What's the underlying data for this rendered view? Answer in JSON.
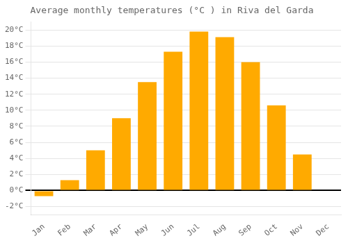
{
  "chart_data": {
    "type": "bar",
    "title": "Average monthly temperatures (°C ) in Riva del Garda",
    "categories": [
      "Jan",
      "Feb",
      "Mar",
      "Apr",
      "May",
      "Jun",
      "Jul",
      "Aug",
      "Sep",
      "Oct",
      "Nov",
      "Dec"
    ],
    "values": [
      -0.7,
      1.3,
      5.0,
      9.0,
      13.5,
      17.3,
      19.8,
      19.1,
      16.0,
      10.6,
      4.5,
      0.0
    ],
    "color": "#FFAA00",
    "ylim": [
      -3,
      21
    ],
    "yticks": [
      {
        "value": -2,
        "label": "-2°C"
      },
      {
        "value": 0,
        "label": "0°C"
      },
      {
        "value": 2,
        "label": "2°C"
      },
      {
        "value": 4,
        "label": "4°C"
      },
      {
        "value": 6,
        "label": "6°C"
      },
      {
        "value": 8,
        "label": "8°C"
      },
      {
        "value": 10,
        "label": "10°C"
      },
      {
        "value": 12,
        "label": "12°C"
      },
      {
        "value": 14,
        "label": "14°C"
      },
      {
        "value": 16,
        "label": "16°C"
      },
      {
        "value": 18,
        "label": "18°C"
      },
      {
        "value": 20,
        "label": "20°C"
      }
    ],
    "grid": true
  }
}
